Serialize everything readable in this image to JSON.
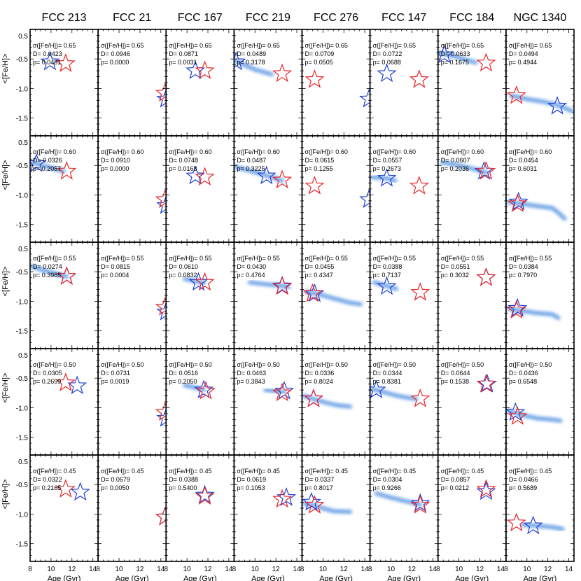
{
  "chart_data": {
    "type": "scatter",
    "galaxies": [
      "FCC 213",
      "FCC 21",
      "FCC 167",
      "FCC 219",
      "FCC 276",
      "FCC 147",
      "FCC 184",
      "NGC 1340"
    ],
    "sigma_label": "σ([Fe/H])=",
    "d_label": "D=",
    "p_label": "p=",
    "ylabel": "<[Fe/H]>",
    "xlabel": "Age (Gyr)",
    "xlim": [
      8,
      14.5
    ],
    "ylim": [
      -1.8,
      0.0
    ],
    "xticks": [
      "8",
      "10",
      "12",
      "14"
    ],
    "yticks": [
      "0.5",
      "-0.5",
      "-1.0",
      "-1.5"
    ],
    "ytick_values": [
      0.5,
      -0.5,
      -1.0,
      -1.5
    ],
    "colors": {
      "observed": "#e8262a",
      "model": "#1f3fd6",
      "density": "#1e6fd8"
    },
    "rows": [
      {
        "sigma": "0.65",
        "cells": [
          {
            "D": "0.0423",
            "p": "0.0431",
            "obs": [
              11.4,
              -0.58
            ],
            "model": [
              9.9,
              -0.55
            ],
            "track": []
          },
          {
            "D": "0.0946",
            "p": "0.0000",
            "obs": [
              14.4,
              -1.08
            ],
            "model": [
              14.5,
              -1.18
            ],
            "track": []
          },
          {
            "D": "0.0871",
            "p": "0.0031",
            "obs": [
              11.7,
              -0.7
            ],
            "model": [
              10.8,
              -0.7
            ],
            "track": []
          },
          {
            "D": "0.0489",
            "p": "0.3178",
            "obs": [
              12.6,
              -0.75
            ],
            "model": [
              8.2,
              -0.55
            ],
            "track": [
              [
                8.0,
                -0.52
              ],
              [
                9.0,
                -0.6
              ],
              [
                10.0,
                -0.68
              ],
              [
                11.0,
                -0.73
              ],
              [
                11.6,
                -0.76
              ]
            ]
          },
          {
            "D": "0.0709",
            "p": "0.0505",
            "obs": [
              9.2,
              -0.85
            ],
            "model": [
              14.4,
              -1.18
            ],
            "track": []
          },
          {
            "D": "0.0722",
            "p": "0.0688",
            "obs": [
              12.7,
              -0.85
            ],
            "model": [
              9.6,
              -0.75
            ],
            "track": []
          },
          {
            "D": "0.0633",
            "p": "0.1675",
            "obs": [
              12.6,
              -0.57
            ],
            "model": [
              8.6,
              -0.43
            ],
            "track": [
              [
                8.2,
                -0.4
              ],
              [
                9.5,
                -0.45
              ],
              [
                10.8,
                -0.52
              ],
              [
                11.6,
                -0.56
              ]
            ]
          },
          {
            "D": "0.0494",
            "p": "0.4944",
            "obs": [
              9.0,
              -1.12
            ],
            "model": [
              12.9,
              -1.3
            ],
            "track": [
              [
                8.5,
                -1.12
              ],
              [
                10.0,
                -1.18
              ],
              [
                11.5,
                -1.22
              ],
              [
                12.9,
                -1.28
              ],
              [
                14.3,
                -1.38
              ]
            ]
          }
        ]
      },
      {
        "sigma": "0.60",
        "cells": [
          {
            "D": "0.0326",
            "p": "0.2057",
            "obs": [
              11.5,
              -0.6
            ],
            "model": [
              8.6,
              -0.47
            ],
            "track": [
              [
                8.0,
                -0.44
              ],
              [
                9.2,
                -0.5
              ],
              [
                10.4,
                -0.56
              ],
              [
                11.2,
                -0.6
              ]
            ]
          },
          {
            "D": "0.0910",
            "p": "0.0000",
            "obs": [
              14.4,
              -1.08
            ],
            "model": [
              14.5,
              -1.18
            ],
            "track": []
          },
          {
            "D": "0.0748",
            "p": "0.0168",
            "obs": [
              11.7,
              -0.7
            ],
            "model": [
              10.8,
              -0.68
            ],
            "track": []
          },
          {
            "D": "0.0487",
            "p": "0.3225",
            "obs": [
              12.6,
              -0.75
            ],
            "model": [
              11.1,
              -0.68
            ],
            "track": [
              [
                8.0,
                -0.52
              ],
              [
                9.3,
                -0.58
              ],
              [
                10.5,
                -0.64
              ],
              [
                11.6,
                -0.7
              ],
              [
                12.6,
                -0.76
              ]
            ]
          },
          {
            "D": "0.0615",
            "p": "0.1255",
            "obs": [
              9.2,
              -0.85
            ],
            "model": [
              14.4,
              -1.08
            ],
            "track": []
          },
          {
            "D": "0.0557",
            "p": "0.2673",
            "obs": [
              12.7,
              -0.85
            ],
            "model": [
              9.6,
              -0.72
            ],
            "track": [
              [
                8.2,
                -0.7
              ],
              [
                9.6,
                -0.72
              ],
              [
                10.4,
                -0.76
              ]
            ]
          },
          {
            "D": "0.0607",
            "p": "0.2036",
            "obs": [
              12.6,
              -0.6
            ],
            "model": [
              12.4,
              -0.6
            ],
            "track": [
              [
                8.4,
                -0.45
              ],
              [
                10.0,
                -0.5
              ],
              [
                11.6,
                -0.57
              ],
              [
                12.6,
                -0.62
              ]
            ]
          },
          {
            "D": "0.0454",
            "p": "0.6031",
            "obs": [
              9.1,
              -1.15
            ],
            "model": [
              9.2,
              -1.12
            ],
            "track": [
              [
                8.2,
                -1.12
              ],
              [
                9.5,
                -1.15
              ],
              [
                11.0,
                -1.19
              ],
              [
                12.4,
                -1.22
              ],
              [
                13.0,
                -1.3
              ],
              [
                13.6,
                -1.4
              ]
            ]
          }
        ]
      },
      {
        "sigma": "0.55",
        "cells": [
          {
            "D": "0.0274",
            "p": "0.3985",
            "obs": [
              11.5,
              -0.58
            ],
            "model": [
              11.5,
              -0.58
            ],
            "track": [
              [
                8.0,
                -0.4
              ],
              [
                9.2,
                -0.47
              ],
              [
                10.4,
                -0.53
              ],
              [
                11.5,
                -0.58
              ]
            ]
          },
          {
            "D": "0.0815",
            "p": "0.0004",
            "obs": [
              14.4,
              -1.1
            ],
            "model": [
              14.5,
              -1.18
            ],
            "track": []
          },
          {
            "D": "0.0610",
            "p": "0.0832",
            "obs": [
              11.7,
              -0.68
            ],
            "model": [
              11.1,
              -0.68
            ],
            "track": [
              [
                9.8,
                -0.62
              ],
              [
                10.8,
                -0.66
              ],
              [
                11.6,
                -0.69
              ]
            ]
          },
          {
            "D": "0.0430",
            "p": "0.4764",
            "obs": [
              12.6,
              -0.75
            ],
            "model": [
              12.6,
              -0.74
            ],
            "track": [
              [
                9.5,
                -0.68
              ],
              [
                11.0,
                -0.71
              ],
              [
                12.6,
                -0.74
              ],
              [
                13.2,
                -0.76
              ]
            ]
          },
          {
            "D": "0.0455",
            "p": "0.4347",
            "obs": [
              9.0,
              -0.87
            ],
            "model": [
              9.2,
              -0.87
            ],
            "track": [
              [
                8.4,
                -0.84
              ],
              [
                9.6,
                -0.88
              ],
              [
                11.0,
                -0.95
              ],
              [
                12.5,
                -1.02
              ],
              [
                13.6,
                -1.05
              ]
            ]
          },
          {
            "D": "0.0388",
            "p": "0.7137",
            "obs": [
              12.8,
              -0.85
            ],
            "model": [
              9.6,
              -0.75
            ],
            "track": [
              [
                8.4,
                -0.68
              ],
              [
                9.6,
                -0.74
              ],
              [
                10.5,
                -0.79
              ]
            ]
          },
          {
            "D": "0.0551",
            "p": "0.3032",
            "obs": [
              12.6,
              -0.6
            ],
            "model": [
              12.6,
              -0.6
            ],
            "track": []
          },
          {
            "D": "0.0384",
            "p": "0.7970",
            "obs": [
              9.0,
              -1.15
            ],
            "model": [
              9.1,
              -1.12
            ],
            "track": [
              [
                8.2,
                -1.12
              ],
              [
                9.5,
                -1.16
              ],
              [
                11.0,
                -1.2
              ],
              [
                12.4,
                -1.22
              ],
              [
                13.0,
                -1.28
              ]
            ]
          }
        ]
      },
      {
        "sigma": "0.50",
        "cells": [
          {
            "D": "0.0305",
            "p": "0.2699",
            "obs": [
              11.4,
              -0.58
            ],
            "model": [
              12.5,
              -0.63
            ],
            "track": []
          },
          {
            "D": "0.0731",
            "p": "0.0019",
            "obs": [
              14.4,
              -1.08
            ],
            "model": [
              14.5,
              -1.18
            ],
            "track": []
          },
          {
            "D": "0.0516",
            "p": "0.2050",
            "obs": [
              11.8,
              -0.72
            ],
            "model": [
              11.6,
              -0.7
            ],
            "track": [
              [
                9.8,
                -0.62
              ],
              [
                10.8,
                -0.66
              ],
              [
                11.6,
                -0.7
              ]
            ]
          },
          {
            "D": "0.0463",
            "p": "0.3843",
            "obs": [
              12.6,
              -0.75
            ],
            "model": [
              12.8,
              -0.72
            ],
            "track": [
              [
                11.0,
                -0.7
              ],
              [
                12.0,
                -0.72
              ],
              [
                12.8,
                -0.74
              ]
            ]
          },
          {
            "D": "0.0336",
            "p": "0.8024",
            "obs": [
              9.1,
              -0.85
            ],
            "model": [
              9.1,
              -0.85
            ],
            "track": [
              [
                8.2,
                -0.8
              ],
              [
                9.2,
                -0.86
              ],
              [
                10.4,
                -0.92
              ],
              [
                11.4,
                -0.96
              ],
              [
                12.6,
                -0.98
              ]
            ]
          },
          {
            "D": "0.0344",
            "p": "0.8381",
            "obs": [
              12.8,
              -0.85
            ],
            "model": [
              8.6,
              -0.7
            ],
            "track": [
              [
                8.2,
                -0.68
              ],
              [
                9.2,
                -0.73
              ],
              [
                10.2,
                -0.78
              ],
              [
                11.2,
                -0.82
              ],
              [
                12.4,
                -0.85
              ]
            ]
          },
          {
            "D": "0.0644",
            "p": "0.1538",
            "obs": [
              12.6,
              -0.6
            ],
            "model": [
              12.7,
              -0.6
            ],
            "track": []
          },
          {
            "D": "0.0436",
            "p": "0.6548",
            "obs": [
              9.1,
              -1.15
            ],
            "model": [
              8.9,
              -1.08
            ],
            "track": [
              [
                8.2,
                -1.05
              ],
              [
                9.5,
                -1.12
              ],
              [
                11.0,
                -1.18
              ],
              [
                12.4,
                -1.2
              ],
              [
                13.2,
                -1.22
              ]
            ]
          }
        ]
      },
      {
        "sigma": "0.45",
        "cells": [
          {
            "D": "0.0322",
            "p": "0.2165",
            "obs": [
              11.4,
              -0.58
            ],
            "model": [
              12.8,
              -0.63
            ],
            "track": []
          },
          {
            "D": "0.0679",
            "p": "0.0050",
            "obs": [
              14.4,
              -1.05
            ],
            "model": [
              14.4,
              -1.05
            ],
            "track": []
          },
          {
            "D": "0.0388",
            "p": "0.5400",
            "obs": [
              11.7,
              -0.7
            ],
            "model": [
              11.7,
              -0.68
            ],
            "track": []
          },
          {
            "D": "0.0619",
            "p": "0.1053",
            "obs": [
              12.6,
              -0.75
            ],
            "model": [
              13.0,
              -0.72
            ],
            "track": []
          },
          {
            "D": "0.0337",
            "p": "0.8017",
            "obs": [
              9.2,
              -0.85
            ],
            "model": [
              8.9,
              -0.8
            ],
            "track": [
              [
                8.2,
                -0.82
              ],
              [
                9.2,
                -0.86
              ],
              [
                10.4,
                -0.92
              ],
              [
                11.0,
                -0.95
              ],
              [
                12.6,
                -0.96
              ]
            ]
          },
          {
            "D": "0.0304",
            "p": "0.9266",
            "obs": [
              12.8,
              -0.85
            ],
            "model": [
              12.8,
              -0.82
            ],
            "track": [
              [
                8.6,
                -0.65
              ],
              [
                10.0,
                -0.72
              ],
              [
                11.4,
                -0.78
              ],
              [
                12.8,
                -0.84
              ]
            ]
          },
          {
            "D": "0.0857",
            "p": "0.0212",
            "obs": [
              12.6,
              -0.58
            ],
            "model": [
              12.6,
              -0.62
            ],
            "track": []
          },
          {
            "D": "0.0466",
            "p": "0.5689",
            "obs": [
              9.0,
              -1.15
            ],
            "model": [
              10.6,
              -1.2
            ],
            "track": [
              [
                9.6,
                -1.18
              ],
              [
                11.0,
                -1.2
              ],
              [
                12.4,
                -1.22
              ],
              [
                13.4,
                -1.25
              ]
            ]
          }
        ]
      }
    ]
  }
}
